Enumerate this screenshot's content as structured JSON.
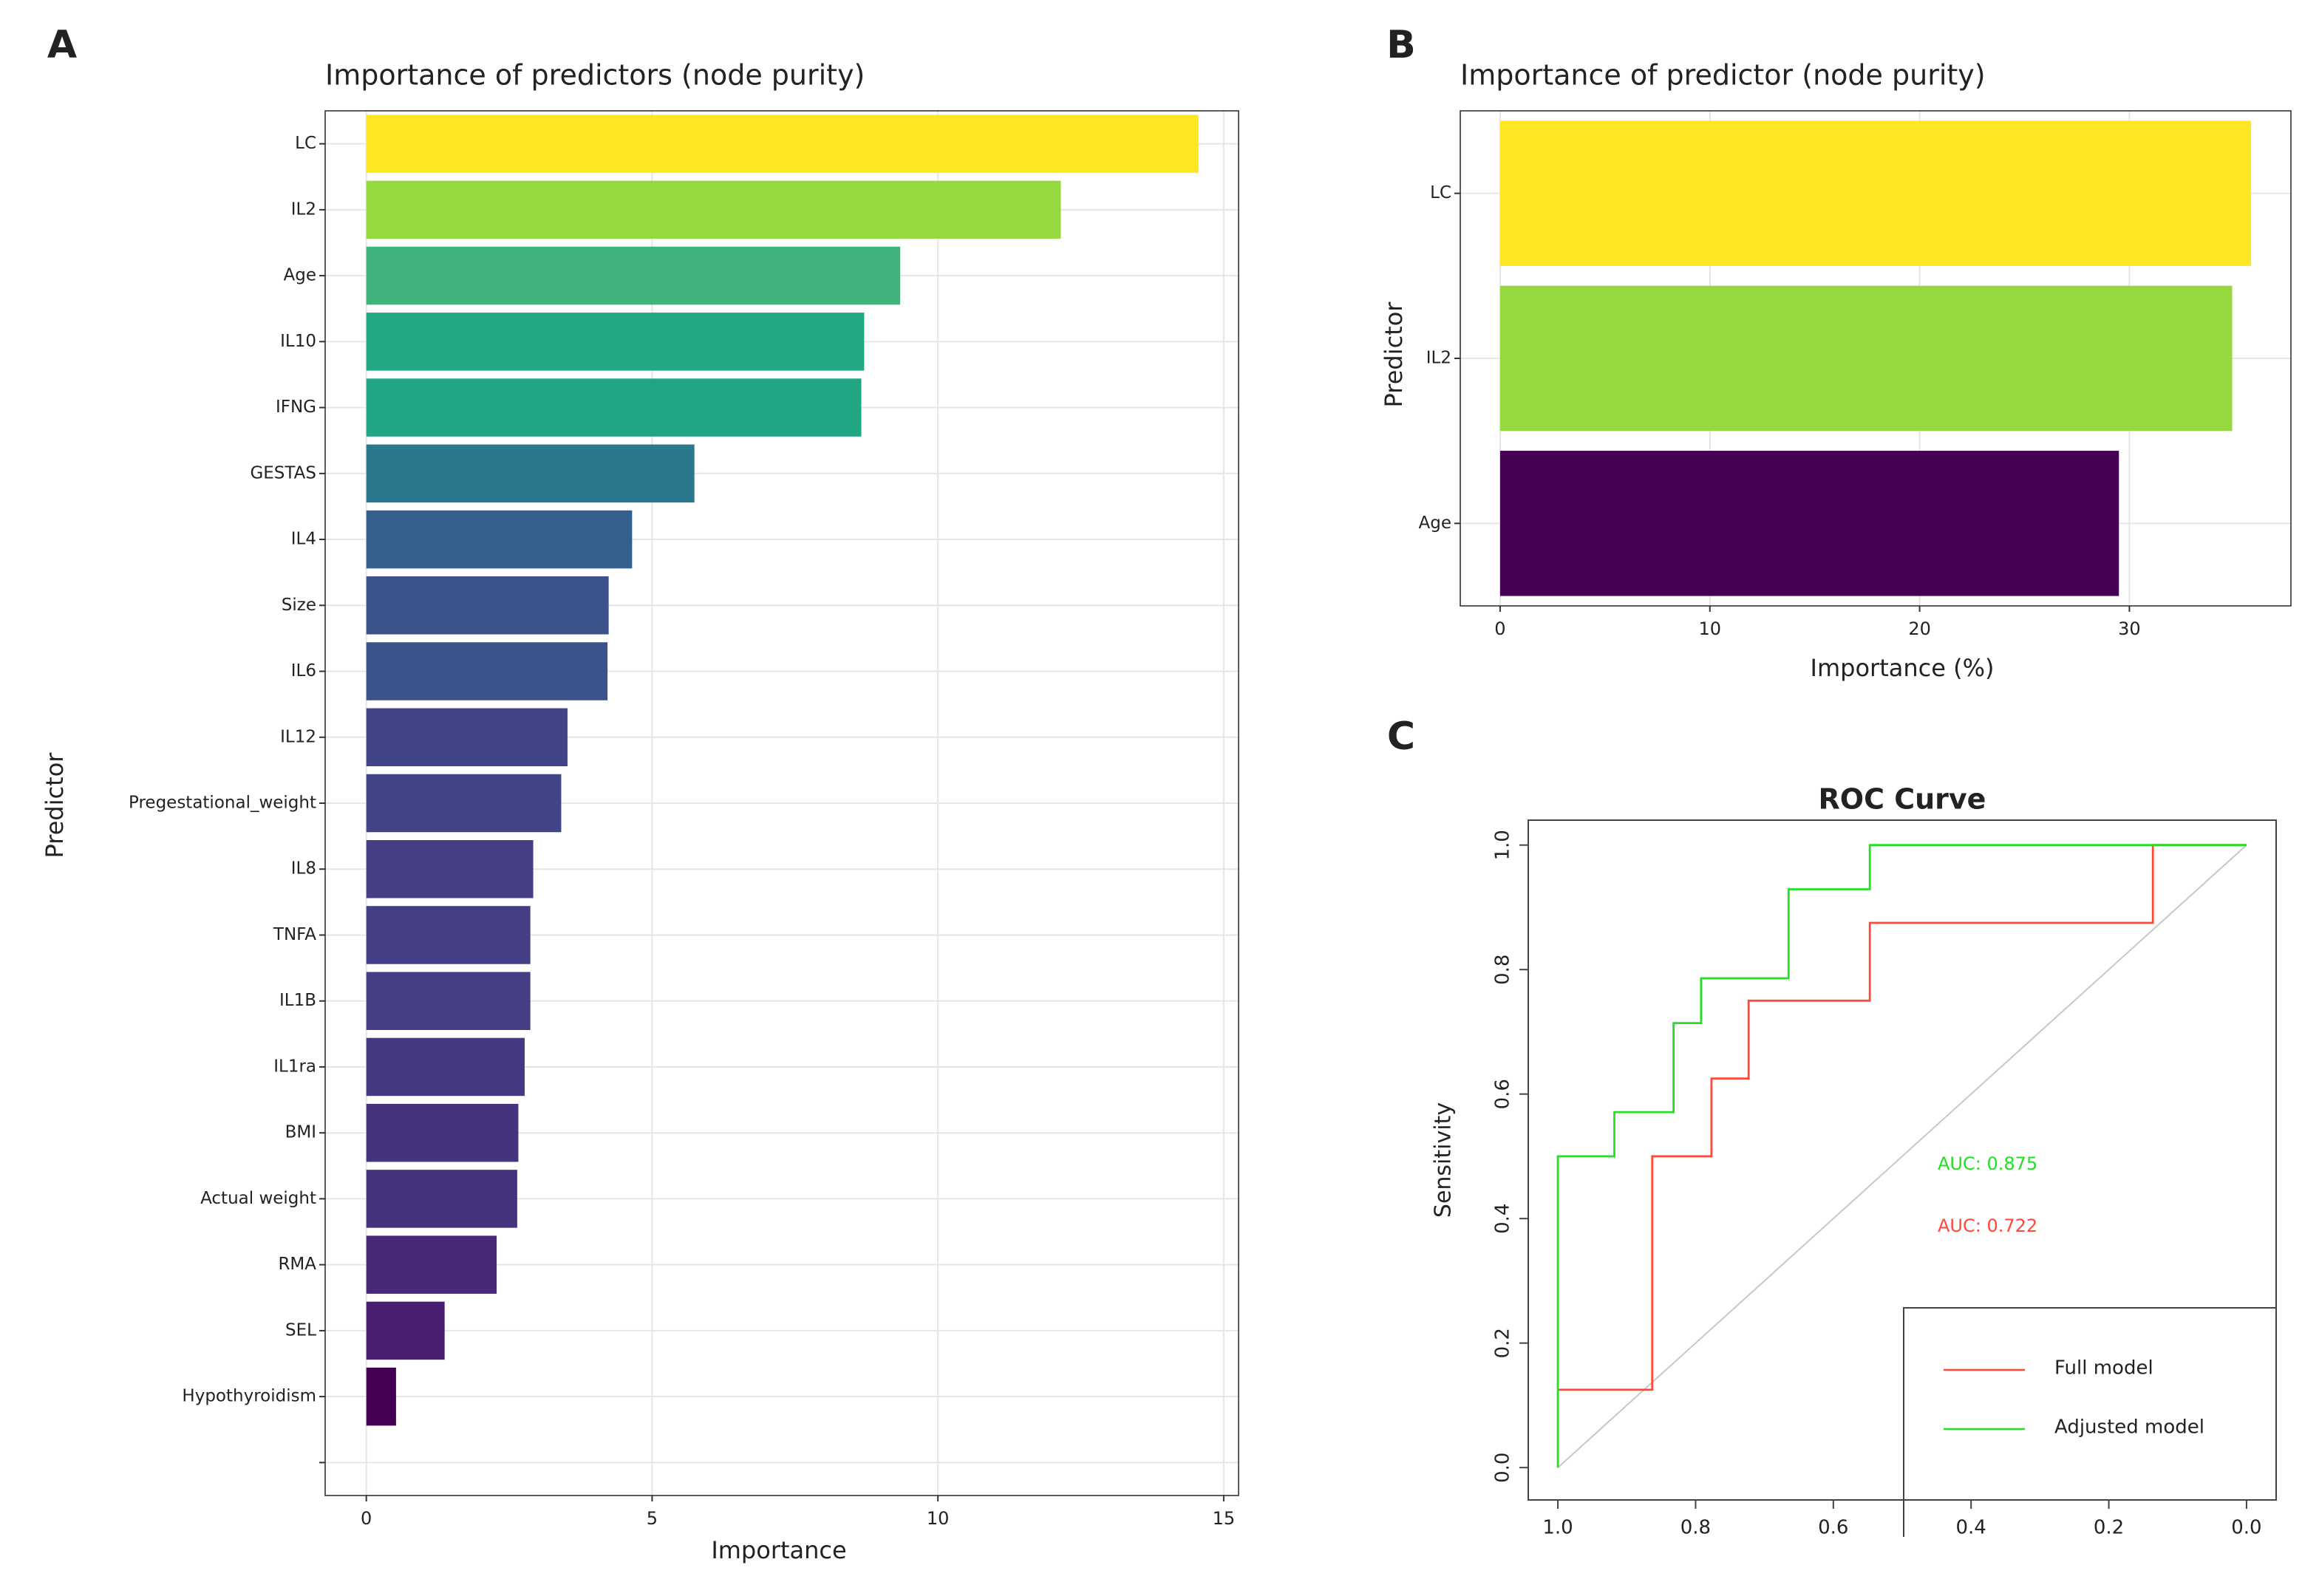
{
  "chart_data": [
    {
      "type": "hbar",
      "panel": "A",
      "title": "Importance of predictors (node purity)",
      "xlabel": "Importance",
      "ylabel": "Predictor",
      "categories": [
        "LC",
        "IL2",
        "Age",
        "IL10",
        "IFNG",
        "GESTAS",
        "IL4",
        "Size",
        "IL6",
        "IL12",
        "Pregestational_weight",
        "IL8",
        "TNFA",
        "IL1B",
        "IL1ra",
        "BMI",
        "Actual weight",
        "RMA",
        "SEL",
        "Hypothyroidism",
        null
      ],
      "values": [
        14.56,
        12.15,
        9.34,
        8.71,
        8.66,
        5.74,
        4.65,
        4.24,
        4.22,
        3.52,
        3.41,
        2.92,
        2.87,
        2.87,
        2.77,
        2.66,
        2.64,
        2.28,
        1.37,
        0.52,
        null
      ],
      "colors": [
        "#fde725",
        "#95d840",
        "#3fb47a",
        "#22a884",
        "#21a685",
        "#2a788e",
        "#355f8d",
        "#3b528b",
        "#3b528b",
        "#414487",
        "#414487",
        "#433e85",
        "#433e85",
        "#433e85",
        "#453781",
        "#46337e",
        "#46337e",
        "#482878",
        "#481f70",
        "#440154",
        null
      ],
      "xlim": [
        -0.72,
        15.26
      ],
      "xticks": [
        0,
        5,
        10,
        15
      ],
      "grid": true
    },
    {
      "type": "hbar",
      "panel": "B",
      "title": "Importance of predictor (node purity)",
      "xlabel": "Importance (%)",
      "ylabel": "Predictor",
      "categories": [
        "LC",
        "IL2",
        "Age"
      ],
      "values": [
        35.8,
        34.9,
        29.5
      ],
      "colors": [
        "#fde725",
        "#95d840",
        "#440154"
      ],
      "xlim": [
        -1.9,
        37.7
      ],
      "xticks": [
        0,
        10,
        20,
        30
      ],
      "grid": true
    },
    {
      "type": "line",
      "panel": "C",
      "title": "ROC Curve",
      "ylabel": "Sensitivity",
      "series": [
        {
          "name": "Full model",
          "color": "#ff4a3a",
          "x": [
            1.0,
            0.863,
            0.863,
            0.777,
            0.777,
            0.723,
            0.723,
            0.547,
            0.547,
            0.136,
            0.136,
            0.0
          ],
          "values": [
            0.125,
            0.125,
            0.5,
            0.5,
            0.625,
            0.625,
            0.75,
            0.75,
            0.875,
            0.875,
            1.0,
            1.0
          ]
        },
        {
          "name": "Adjusted model",
          "color": "#22e022",
          "x": [
            1.0,
            1.0,
            0.918,
            0.918,
            0.832,
            0.832,
            0.792,
            0.792,
            0.665,
            0.665,
            0.547,
            0.547,
            0.0
          ],
          "values": [
            0.0,
            0.5,
            0.5,
            0.571,
            0.571,
            0.714,
            0.714,
            0.786,
            0.786,
            0.929,
            0.929,
            1.0,
            1.0
          ]
        }
      ],
      "annotations": [
        {
          "text": "AUC: 0.875",
          "color": "#22e022"
        },
        {
          "text": "AUC: 0.722",
          "color": "#ff4a3a"
        }
      ],
      "xlim": [
        1.043,
        -0.043
      ],
      "ylim": [
        -0.052,
        1.04
      ],
      "xticks": [
        {
          "value": 1,
          "label": "1.0"
        },
        {
          "value": 0.8,
          "label": "0.8"
        },
        {
          "value": 0.6,
          "label": "0.6"
        },
        {
          "value": 0.4,
          "label": "0.4"
        },
        {
          "value": 0.2,
          "label": "0.2"
        },
        {
          "value": 0,
          "label": "0.0"
        }
      ],
      "yticks": [
        {
          "value": 0,
          "label": "0.0"
        },
        {
          "value": 0.2,
          "label": "0.2"
        },
        {
          "value": 0.4,
          "label": "0.4"
        },
        {
          "value": 0.6,
          "label": "0.6"
        },
        {
          "value": 0.8,
          "label": "0.8"
        },
        {
          "value": 1,
          "label": "1.0"
        }
      ],
      "legend": "bottom-right"
    }
  ]
}
